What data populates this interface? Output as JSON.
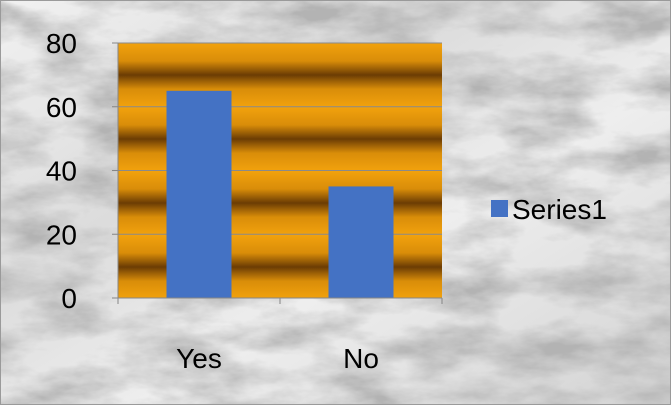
{
  "chart_data": {
    "type": "bar",
    "categories": [
      "Yes",
      "No"
    ],
    "series": [
      {
        "name": "Series1",
        "values": [
          65,
          35
        ],
        "color": "#4472C4"
      }
    ],
    "ylim": [
      0,
      80
    ],
    "yticks": [
      0,
      20,
      40,
      60,
      80
    ],
    "ytick_labels": [
      "0",
      "20",
      "40",
      "60",
      "80"
    ],
    "grid": true,
    "legend": "right",
    "plot_fill": "gold-brown-striped",
    "background": "marble-texture"
  }
}
